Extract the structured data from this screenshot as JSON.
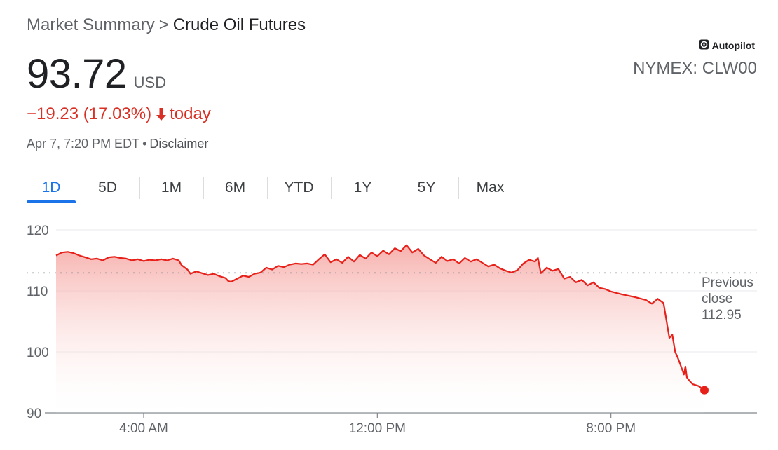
{
  "breadcrumb": {
    "parent": "Market Summary",
    "separator": ">",
    "current": "Crude Oil Futures"
  },
  "quote": {
    "price": "93.72",
    "currency": "USD",
    "change": "−19.23 (17.03%)",
    "change_period": "today",
    "timestamp": "Apr 7, 7:20 PM EDT",
    "separator": "•",
    "disclaimer": "Disclaimer",
    "badge": "Autopilot",
    "ticker": "NYMEX: CLW00"
  },
  "tabs": [
    "1D",
    "5D",
    "1M",
    "6M",
    "YTD",
    "1Y",
    "5Y",
    "Max"
  ],
  "active_tab": "1D",
  "colors": {
    "line": "#e8201a",
    "fill_top": "#f5a39f",
    "negative": "#d93025",
    "tab_active": "#1a73e8"
  },
  "chart_data": {
    "type": "area",
    "x_unit": "hours",
    "x_range": [
      0,
      24
    ],
    "ylim": [
      90,
      120
    ],
    "yticks": [
      90,
      100,
      110,
      120
    ],
    "xticks": [
      {
        "value": 3,
        "label": "4:00 AM"
      },
      {
        "value": 11,
        "label": "12:00 PM"
      },
      {
        "value": 19,
        "label": "8:00 PM"
      }
    ],
    "previous_close": 112.95,
    "previous_close_label": [
      "Previous",
      "close",
      "112.95"
    ],
    "points": [
      [
        0.0,
        115.8
      ],
      [
        0.2,
        116.3
      ],
      [
        0.4,
        116.4
      ],
      [
        0.6,
        116.2
      ],
      [
        0.8,
        115.8
      ],
      [
        1.0,
        115.5
      ],
      [
        1.2,
        115.2
      ],
      [
        1.4,
        115.3
      ],
      [
        1.6,
        115.0
      ],
      [
        1.8,
        115.5
      ],
      [
        2.0,
        115.6
      ],
      [
        2.2,
        115.4
      ],
      [
        2.4,
        115.3
      ],
      [
        2.6,
        115.0
      ],
      [
        2.8,
        115.2
      ],
      [
        3.0,
        114.9
      ],
      [
        3.2,
        115.1
      ],
      [
        3.4,
        115.0
      ],
      [
        3.6,
        115.2
      ],
      [
        3.8,
        115.0
      ],
      [
        4.0,
        115.3
      ],
      [
        4.2,
        115.0
      ],
      [
        4.3,
        114.2
      ],
      [
        4.5,
        113.5
      ],
      [
        4.6,
        112.8
      ],
      [
        4.8,
        113.2
      ],
      [
        5.0,
        112.9
      ],
      [
        5.2,
        112.6
      ],
      [
        5.4,
        112.8
      ],
      [
        5.6,
        112.4
      ],
      [
        5.8,
        112.1
      ],
      [
        5.9,
        111.6
      ],
      [
        6.0,
        111.5
      ],
      [
        6.2,
        112.0
      ],
      [
        6.4,
        112.5
      ],
      [
        6.6,
        112.3
      ],
      [
        6.8,
        112.8
      ],
      [
        7.0,
        113.0
      ],
      [
        7.2,
        113.8
      ],
      [
        7.4,
        113.5
      ],
      [
        7.6,
        114.1
      ],
      [
        7.8,
        113.9
      ],
      [
        8.0,
        114.3
      ],
      [
        8.2,
        114.5
      ],
      [
        8.4,
        114.4
      ],
      [
        8.6,
        114.5
      ],
      [
        8.8,
        114.3
      ],
      [
        9.0,
        115.2
      ],
      [
        9.2,
        116.0
      ],
      [
        9.4,
        114.7
      ],
      [
        9.6,
        115.2
      ],
      [
        9.8,
        114.6
      ],
      [
        10.0,
        115.6
      ],
      [
        10.2,
        114.8
      ],
      [
        10.4,
        115.9
      ],
      [
        10.6,
        115.3
      ],
      [
        10.8,
        116.3
      ],
      [
        11.0,
        115.7
      ],
      [
        11.2,
        116.6
      ],
      [
        11.4,
        116.0
      ],
      [
        11.6,
        117.0
      ],
      [
        11.8,
        116.5
      ],
      [
        12.0,
        117.5
      ],
      [
        12.2,
        116.3
      ],
      [
        12.4,
        116.9
      ],
      [
        12.6,
        115.8
      ],
      [
        12.8,
        115.2
      ],
      [
        13.0,
        114.6
      ],
      [
        13.2,
        115.6
      ],
      [
        13.4,
        114.9
      ],
      [
        13.6,
        115.2
      ],
      [
        13.8,
        114.5
      ],
      [
        14.0,
        115.4
      ],
      [
        14.2,
        114.8
      ],
      [
        14.4,
        115.2
      ],
      [
        14.6,
        114.6
      ],
      [
        14.8,
        114.0
      ],
      [
        15.0,
        114.3
      ],
      [
        15.2,
        113.7
      ],
      [
        15.4,
        113.3
      ],
      [
        15.6,
        113.0
      ],
      [
        15.8,
        113.4
      ],
      [
        16.0,
        114.5
      ],
      [
        16.2,
        115.1
      ],
      [
        16.4,
        114.8
      ],
      [
        16.5,
        115.4
      ],
      [
        16.6,
        112.9
      ],
      [
        16.8,
        113.8
      ],
      [
        17.0,
        113.3
      ],
      [
        17.2,
        113.6
      ],
      [
        17.4,
        112.0
      ],
      [
        17.6,
        112.3
      ],
      [
        17.8,
        111.4
      ],
      [
        18.0,
        111.8
      ],
      [
        18.2,
        110.9
      ],
      [
        18.4,
        111.4
      ],
      [
        18.6,
        110.5
      ],
      [
        18.8,
        110.3
      ],
      [
        19.0,
        109.9
      ],
      [
        19.4,
        109.4
      ],
      [
        19.8,
        109.0
      ],
      [
        20.2,
        108.5
      ],
      [
        20.4,
        107.9
      ],
      [
        20.6,
        108.7
      ],
      [
        20.8,
        108.0
      ],
      [
        21.0,
        102.3
      ],
      [
        21.1,
        102.8
      ],
      [
        21.2,
        100.0
      ],
      [
        21.3,
        98.9
      ],
      [
        21.4,
        97.6
      ],
      [
        21.5,
        96.3
      ],
      [
        21.55,
        97.6
      ],
      [
        21.6,
        95.8
      ],
      [
        21.7,
        95.2
      ],
      [
        21.8,
        94.7
      ],
      [
        22.0,
        94.4
      ],
      [
        22.2,
        93.72
      ]
    ]
  }
}
